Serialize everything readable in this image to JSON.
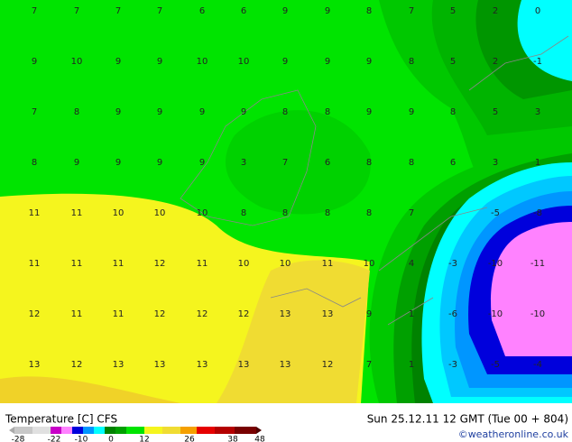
{
  "map": {
    "grid": [
      [
        7,
        7,
        7,
        7,
        6,
        6,
        9,
        9,
        8,
        7,
        5,
        2,
        0
      ],
      [
        9,
        10,
        9,
        9,
        10,
        10,
        9,
        9,
        9,
        8,
        5,
        2,
        -1
      ],
      [
        7,
        8,
        9,
        9,
        9,
        9,
        8,
        8,
        9,
        9,
        8,
        5,
        3
      ],
      [
        8,
        9,
        9,
        9,
        9,
        3,
        7,
        6,
        8,
        8,
        6,
        3,
        1
      ],
      [
        11,
        11,
        10,
        10,
        10,
        8,
        8,
        8,
        8,
        7,
        null,
        -5,
        -8
      ],
      [
        11,
        11,
        11,
        12,
        11,
        10,
        10,
        11,
        10,
        4,
        -3,
        -10,
        -11
      ],
      [
        12,
        11,
        11,
        12,
        12,
        12,
        13,
        13,
        9,
        1,
        -6,
        -10,
        -10
      ],
      [
        13,
        12,
        13,
        13,
        13,
        13,
        13,
        12,
        7,
        1,
        -3,
        -5,
        -4
      ]
    ],
    "title": "Temperature [C] CFS",
    "datetime": "Sun 25.12.11 12 GMT (Tue 00 + 804)",
    "credit": "©weatheronline.co.uk",
    "legend_ticks": [
      -28,
      -22,
      -10,
      0,
      12,
      26,
      38,
      48
    ]
  }
}
